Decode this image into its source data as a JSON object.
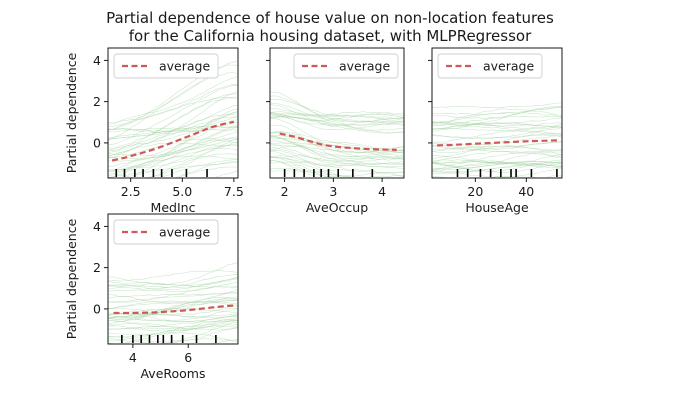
{
  "title_lines": [
    "Partial dependence of house value on non-location features",
    "for the California housing dataset, with MLPRegressor"
  ],
  "chart_data": [
    {
      "type": "line",
      "xlabel": "MedInc",
      "ylabel": "Partial dependence",
      "xlim": [
        1.4,
        7.7
      ],
      "ylim": [
        -1.7,
        4.6
      ],
      "xticks": [
        2.5,
        5.0,
        7.5
      ],
      "xtick_labels": [
        "2.5",
        "5.0",
        "7.5"
      ],
      "yticks": [
        0,
        2,
        4
      ],
      "ytick_labels": [
        "0",
        "2",
        "4"
      ],
      "legend": {
        "labels": [
          "average"
        ],
        "placement": "upper-left"
      },
      "series": [
        {
          "name": "average",
          "x": [
            1.6,
            2.2,
            2.8,
            3.4,
            4.0,
            4.6,
            5.2,
            5.8,
            6.4,
            7.0,
            7.5
          ],
          "y": [
            -0.85,
            -0.72,
            -0.55,
            -0.38,
            -0.18,
            0.05,
            0.28,
            0.52,
            0.76,
            0.92,
            1.02
          ]
        }
      ],
      "rug": [
        1.8,
        2.2,
        2.7,
        3.1,
        3.6,
        4.0,
        4.5,
        5.2,
        6.2
      ]
    },
    {
      "type": "line",
      "xlabel": "AveOccup",
      "ylabel": "",
      "xlim": [
        1.7,
        4.45
      ],
      "ylim": [
        -1.7,
        4.6
      ],
      "xticks": [
        2,
        3,
        4
      ],
      "xtick_labels": [
        "2",
        "3",
        "4"
      ],
      "yticks": [
        0,
        2,
        4
      ],
      "ytick_labels": [],
      "legend": {
        "labels": [
          "average"
        ],
        "placement": "upper-right"
      },
      "series": [
        {
          "name": "average",
          "x": [
            1.9,
            2.2,
            2.5,
            2.8,
            3.1,
            3.4,
            3.7,
            4.0,
            4.3
          ],
          "y": [
            0.45,
            0.3,
            0.1,
            -0.1,
            -0.2,
            -0.25,
            -0.3,
            -0.32,
            -0.34
          ]
        }
      ],
      "rug": [
        2.0,
        2.2,
        2.4,
        2.6,
        2.75,
        2.9,
        3.1,
        3.4,
        3.8
      ]
    },
    {
      "type": "line",
      "xlabel": "HouseAge",
      "ylabel": "",
      "xlim": [
        3,
        54
      ],
      "ylim": [
        -1.7,
        4.6
      ],
      "xticks": [
        20,
        40
      ],
      "xtick_labels": [
        "20",
        "40"
      ],
      "yticks": [
        0,
        2,
        4
      ],
      "ytick_labels": [],
      "legend": {
        "labels": [
          "average"
        ],
        "placement": "upper-left"
      },
      "series": [
        {
          "name": "average",
          "x": [
            5,
            10,
            15,
            20,
            25,
            30,
            35,
            40,
            45,
            52
          ],
          "y": [
            -0.12,
            -0.1,
            -0.07,
            -0.04,
            -0.01,
            0.02,
            0.05,
            0.08,
            0.1,
            0.12
          ]
        }
      ],
      "rug": [
        13,
        17,
        22,
        26,
        30,
        34,
        36,
        42,
        52
      ]
    },
    {
      "type": "line",
      "xlabel": "AveRooms",
      "ylabel": "Partial dependence",
      "xlim": [
        3.1,
        7.8
      ],
      "ylim": [
        -1.7,
        4.6
      ],
      "xticks": [
        4,
        6
      ],
      "xtick_labels": [
        "4",
        "6"
      ],
      "yticks": [
        0,
        2,
        4
      ],
      "ytick_labels": [
        "0",
        "2",
        "4"
      ],
      "legend": {
        "labels": [
          "average"
        ],
        "placement": "upper-left"
      },
      "series": [
        {
          "name": "average",
          "x": [
            3.3,
            3.8,
            4.3,
            4.8,
            5.3,
            5.8,
            6.3,
            6.8,
            7.3,
            7.7
          ],
          "y": [
            -0.2,
            -0.2,
            -0.19,
            -0.17,
            -0.13,
            -0.08,
            -0.02,
            0.06,
            0.13,
            0.17
          ]
        }
      ],
      "rug": [
        3.6,
        4.0,
        4.3,
        4.6,
        4.9,
        5.1,
        5.4,
        5.8,
        6.3,
        7.0
      ]
    }
  ],
  "colors": {
    "average": "#d05858",
    "individual": "#9fd09f",
    "frame": "#000000"
  }
}
